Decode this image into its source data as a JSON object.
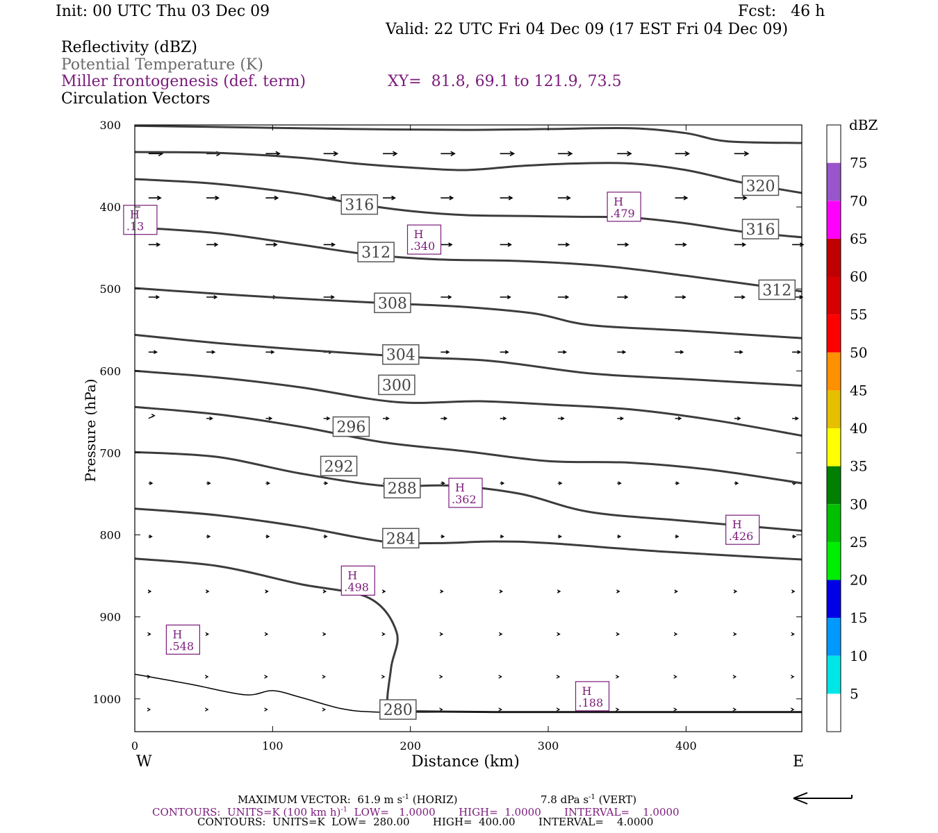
{
  "header": {
    "init": "Init: 00 UTC Thu 03 Dec 09",
    "fcst": "Fcst:   46 h",
    "valid": "Valid: 22 UTC Fri 04 Dec 09 (17 EST Fri 04 Dec 09)",
    "field1": "Reflectivity (dBZ)",
    "field2": "Potential Temperature (K)",
    "field3": "Miller frontogenesis (def. term)",
    "xy": "XY=  81.8, 69.1 to 121.9, 73.5",
    "field4": "Circulation Vectors"
  },
  "colors": {
    "theta": "#3c3c3c",
    "frontogenesis": "#7a1a7a",
    "vector": "#000000"
  },
  "chart_data": {
    "type": "cross-section",
    "xlabel": "Distance (km)",
    "ylabel": "Pressure (hPa)",
    "x_ticks": [
      "0",
      "100",
      "200",
      "300",
      "400"
    ],
    "x_tick_values": [
      0,
      100,
      200,
      300,
      400
    ],
    "y_ticks": [
      "300",
      "400",
      "500",
      "600",
      "700",
      "800",
      "900",
      "1000"
    ],
    "y_tick_values": [
      300,
      400,
      500,
      600,
      700,
      800,
      900,
      1000
    ],
    "xlim": [
      0,
      484
    ],
    "ylim": [
      1040,
      300
    ],
    "left_end": "W",
    "right_end": "E",
    "theta_contours": [
      {
        "value": 320,
        "label": "320",
        "points": [
          [
            0,
            301
          ],
          [
            80,
            303
          ],
          [
            160,
            305
          ],
          [
            240,
            306
          ],
          [
            300,
            305
          ],
          [
            360,
            304
          ],
          [
            400,
            310
          ],
          [
            430,
            320
          ],
          [
            484,
            322
          ]
        ],
        "labels": [
          [
            454,
            374
          ]
        ]
      },
      {
        "value": 316,
        "label": "316",
        "points": [
          [
            0,
            333
          ],
          [
            60,
            334
          ],
          [
            120,
            340
          ],
          [
            160,
            347
          ],
          [
            200,
            352
          ],
          [
            240,
            355
          ],
          [
            280,
            350
          ],
          [
            320,
            347
          ],
          [
            360,
            347
          ],
          [
            400,
            355
          ],
          [
            440,
            370
          ],
          [
            484,
            383
          ]
        ],
        "labels": [
          [
            163,
            397
          ],
          [
            454,
            427
          ]
        ]
      },
      {
        "value": 312,
        "label": "312",
        "points": [
          [
            0,
            366
          ],
          [
            60,
            372
          ],
          [
            120,
            384
          ],
          [
            160,
            396
          ],
          [
            200,
            405
          ],
          [
            240,
            410
          ],
          [
            280,
            411
          ],
          [
            320,
            412
          ],
          [
            360,
            413
          ],
          [
            400,
            420
          ],
          [
            440,
            430
          ],
          [
            484,
            437
          ]
        ],
        "labels": [
          [
            175,
            455
          ],
          [
            466,
            501
          ]
        ]
      },
      {
        "value": 308,
        "label": "308",
        "points": [
          [
            0,
            425
          ],
          [
            60,
            432
          ],
          [
            120,
            446
          ],
          [
            170,
            458
          ],
          [
            220,
            464
          ],
          [
            280,
            466
          ],
          [
            340,
            472
          ],
          [
            400,
            484
          ],
          [
            484,
            503
          ]
        ],
        "labels": [
          [
            187,
            517
          ]
        ]
      },
      {
        "value": 304,
        "label": "304",
        "points": [
          [
            0,
            499
          ],
          [
            60,
            506
          ],
          [
            120,
            512
          ],
          [
            190,
            518
          ],
          [
            240,
            522
          ],
          [
            290,
            530
          ],
          [
            330,
            544
          ],
          [
            400,
            551
          ],
          [
            484,
            560
          ]
        ],
        "labels": [
          [
            193,
            580
          ]
        ]
      },
      {
        "value": 300,
        "label": "300",
        "points": [
          [
            0,
            556
          ],
          [
            60,
            566
          ],
          [
            120,
            574
          ],
          [
            200,
            583
          ],
          [
            260,
            588
          ],
          [
            330,
            603
          ],
          [
            400,
            610
          ],
          [
            484,
            618
          ]
        ],
        "labels": [
          [
            190,
            617
          ]
        ]
      },
      {
        "value": 296,
        "label": "296",
        "points": [
          [
            0,
            600
          ],
          [
            60,
            608
          ],
          [
            120,
            620
          ],
          [
            190,
            638
          ],
          [
            250,
            637
          ],
          [
            300,
            641
          ],
          [
            360,
            647
          ],
          [
            420,
            660
          ],
          [
            484,
            679
          ]
        ],
        "labels": [
          [
            157,
            668
          ]
        ]
      },
      {
        "value": 292,
        "label": "292",
        "points": [
          [
            0,
            644
          ],
          [
            60,
            653
          ],
          [
            120,
            668
          ],
          [
            180,
            687
          ],
          [
            240,
            698
          ],
          [
            300,
            710
          ],
          [
            360,
            712
          ],
          [
            420,
            721
          ],
          [
            484,
            737
          ]
        ],
        "labels": [
          [
            148,
            716
          ]
        ]
      },
      {
        "value": 288,
        "label": "288",
        "points": [
          [
            0,
            699
          ],
          [
            60,
            705
          ],
          [
            120,
            725
          ],
          [
            180,
            740
          ],
          [
            230,
            740
          ],
          [
            280,
            750
          ],
          [
            330,
            772
          ],
          [
            400,
            783
          ],
          [
            484,
            795
          ]
        ],
        "labels": [
          [
            194,
            743
          ]
        ]
      },
      {
        "value": 284,
        "label": "284",
        "points": [
          [
            0,
            768
          ],
          [
            60,
            776
          ],
          [
            120,
            790
          ],
          [
            180,
            808
          ],
          [
            220,
            810
          ],
          [
            260,
            808
          ],
          [
            300,
            810
          ],
          [
            380,
            820
          ],
          [
            484,
            830
          ]
        ],
        "labels": [
          [
            193,
            804
          ]
        ]
      },
      {
        "value": 280,
        "label": "280",
        "points": [
          [
            0,
            829
          ],
          [
            60,
            838
          ],
          [
            120,
            860
          ],
          [
            170,
            877
          ],
          [
            190,
            919
          ],
          [
            186,
            962
          ],
          [
            184,
            1013
          ],
          [
            200,
            1015
          ],
          [
            260,
            1016
          ],
          [
            340,
            1016
          ],
          [
            484,
            1016
          ]
        ],
        "labels": [
          [
            191,
            1013
          ]
        ]
      }
    ],
    "surface_line": {
      "points": [
        [
          0,
          970
        ],
        [
          40,
          982
        ],
        [
          80,
          995
        ],
        [
          100,
          990
        ],
        [
          120,
          998
        ],
        [
          150,
          1012
        ],
        [
          175,
          1016
        ],
        [
          220,
          1016
        ],
        [
          280,
          1016
        ],
        [
          484,
          1016
        ]
      ]
    },
    "frontogenesis_maxima": [
      {
        "label": "H",
        "value": ".13",
        "at": [
          4,
          420
        ]
      },
      {
        "label": "H",
        "value": ".340",
        "at": [
          210,
          444
        ]
      },
      {
        "label": "H",
        "value": ".479",
        "at": [
          355,
          404
        ]
      },
      {
        "label": "H",
        "value": ".362",
        "at": [
          240,
          753
        ]
      },
      {
        "label": "H",
        "value": ".426",
        "at": [
          441,
          798
        ]
      },
      {
        "label": "H",
        "value": ".498",
        "at": [
          162,
          860
        ]
      },
      {
        "label": "H",
        "value": ".548",
        "at": [
          35,
          932
        ]
      },
      {
        "label": "H",
        "value": ".188",
        "at": [
          332,
          1001
        ]
      }
    ],
    "colorbar": {
      "unit": "dBZ",
      "labels": [
        "5",
        "10",
        "15",
        "20",
        "25",
        "30",
        "35",
        "40",
        "45",
        "50",
        "55",
        "60",
        "65",
        "70",
        "75"
      ],
      "bins": [
        {
          "from": 0,
          "to": 5,
          "color": "#ffffff"
        },
        {
          "from": 5,
          "to": 10,
          "color": "#00e6e6"
        },
        {
          "from": 10,
          "to": 15,
          "color": "#0099ff"
        },
        {
          "from": 15,
          "to": 20,
          "color": "#0000e6"
        },
        {
          "from": 20,
          "to": 25,
          "color": "#00ee00"
        },
        {
          "from": 25,
          "to": 30,
          "color": "#00c000"
        },
        {
          "from": 30,
          "to": 35,
          "color": "#008000"
        },
        {
          "from": 35,
          "to": 40,
          "color": "#ffff00"
        },
        {
          "from": 40,
          "to": 45,
          "color": "#e6c000"
        },
        {
          "from": 45,
          "to": 50,
          "color": "#ff9000"
        },
        {
          "from": 50,
          "to": 55,
          "color": "#ff0000"
        },
        {
          "from": 55,
          "to": 60,
          "color": "#d60000"
        },
        {
          "from": 60,
          "to": 65,
          "color": "#c00000"
        },
        {
          "from": 65,
          "to": 70,
          "color": "#ff00ff"
        },
        {
          "from": 70,
          "to": 75,
          "color": "#9955cc"
        },
        {
          "from": 75,
          "to": 80,
          "color": "#ffffff"
        }
      ]
    },
    "vectors": {
      "rows": [
        {
          "p": 335,
          "u": [
            38,
            38,
            38,
            38,
            38,
            38,
            38,
            38,
            38,
            38,
            38,
            38
          ],
          "w": [
            0,
            0,
            0,
            0,
            0,
            0,
            0,
            0,
            0,
            0,
            0,
            0
          ],
          "shaft": 1.6
        },
        {
          "p": 389,
          "u": [
            33,
            33,
            33,
            33,
            33,
            33,
            33,
            33,
            33,
            33,
            33,
            33
          ],
          "w": [
            0,
            0,
            0,
            0,
            0,
            0,
            0,
            0,
            0,
            0,
            0,
            0
          ],
          "shaft": 1.6
        },
        {
          "p": 446,
          "u": [
            30,
            30,
            30,
            30,
            30,
            30,
            30,
            30,
            30,
            30,
            30,
            30
          ],
          "w": [
            0,
            0,
            0,
            0,
            0,
            0,
            0,
            0,
            0,
            0,
            0,
            0
          ],
          "shaft": 1.6
        },
        {
          "p": 510,
          "u": [
            28,
            28,
            28,
            28,
            28,
            28,
            28,
            28,
            28,
            28,
            28,
            28
          ],
          "w": [
            0,
            0,
            0,
            0,
            0,
            0,
            0,
            0,
            0,
            0,
            0,
            0
          ],
          "shaft": 1.5
        },
        {
          "p": 577,
          "u": [
            22,
            22,
            22,
            22,
            22,
            22,
            22,
            22,
            22,
            22,
            22,
            22
          ],
          "w": [
            0,
            0,
            0,
            0,
            0,
            0,
            0,
            0,
            0,
            0,
            0,
            0
          ],
          "shaft": 1.5
        },
        {
          "p": 658,
          "u": [
            16,
            16,
            16,
            16,
            16,
            16,
            16,
            16,
            16,
            16,
            16,
            16
          ],
          "w": [
            -1,
            0,
            0,
            0,
            0,
            0,
            0,
            0,
            0,
            0,
            0,
            0
          ],
          "shaft": 1.4
        },
        {
          "p": 737,
          "u": [
            10,
            10,
            10,
            10,
            10,
            10,
            10,
            10,
            10,
            10,
            10,
            10
          ],
          "w": [
            0,
            0,
            0,
            0,
            0,
            0,
            0,
            0,
            0,
            0,
            0,
            0
          ],
          "shaft": 1.3
        },
        {
          "p": 802,
          "u": [
            9,
            9,
            9,
            9,
            9,
            9,
            9,
            9,
            9,
            9,
            9,
            9
          ],
          "w": [
            0,
            0,
            0,
            0,
            0,
            0,
            0,
            0,
            0,
            0,
            0,
            0
          ],
          "shaft": 1.3
        },
        {
          "p": 869,
          "u": [
            6,
            6,
            6,
            6,
            6,
            6,
            6,
            6,
            6,
            6,
            6,
            6
          ],
          "w": [
            0,
            0,
            0,
            0,
            0,
            0,
            0,
            0,
            0,
            0,
            0,
            0
          ],
          "shaft": 1.2
        },
        {
          "p": 921,
          "u": [
            5,
            5,
            5,
            5,
            5,
            5,
            5,
            5,
            5,
            5,
            5,
            5
          ],
          "w": [
            0,
            0,
            0,
            0,
            0,
            0,
            0,
            0,
            0,
            0,
            0,
            0
          ],
          "shaft": 1.2
        },
        {
          "p": 973,
          "u": [
            4,
            4,
            4,
            4,
            4,
            4,
            4,
            4,
            4,
            4,
            4,
            4
          ],
          "w": [
            0,
            0,
            0,
            0,
            0,
            0,
            0,
            0,
            0,
            0,
            0,
            0
          ],
          "shaft": 1.2
        },
        {
          "p": 1013,
          "u": [
            4,
            4,
            4,
            4,
            4,
            4,
            4,
            4,
            4,
            4,
            4,
            4
          ],
          "w": [
            0,
            0,
            0,
            0,
            0,
            0,
            0,
            0,
            0,
            0,
            0,
            0
          ],
          "shaft": 1.2
        }
      ],
      "x_positions": [
        10,
        52,
        95,
        137,
        180,
        222,
        265,
        307,
        350,
        392,
        435,
        477
      ]
    }
  },
  "footer": {
    "max_vector": "MAXIMUM VECTOR:  61.9 m s",
    "max_vector_exp": "-1",
    "max_vector_horiz": " (HORIZ)",
    "max_vector_vert": "7.8 dPa s",
    "max_vector_vert_exp": "-1",
    "max_vector_vert_tail": " (VERT)",
    "contours1": "CONTOURS:  UNITS=K (100 km h)",
    "contours1_exp": "-1",
    "contours1_tail": "  LOW=   1.0000       HIGH=  1.0000       INTERVAL=    1.0000",
    "contours2": "CONTOURS:  UNITS=K  LOW=  280.00       HIGH=  400.00       INTERVAL=    4.0000"
  }
}
